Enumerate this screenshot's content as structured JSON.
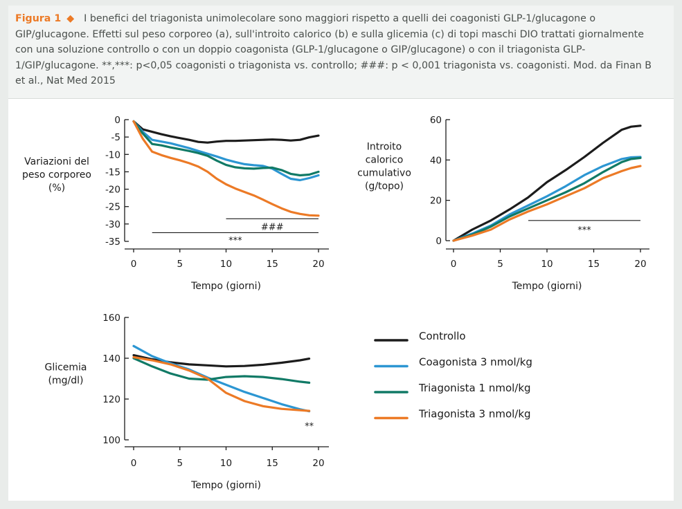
{
  "caption": {
    "label": "Figura 1",
    "diamond": "◆",
    "text": "I benefici del triagonista unimolecolare sono maggiori rispetto a quelli dei coagonisti GLP-1/glucagone o GIP/glucagone. Effetti sul peso corporeo (a), sull'introito calorico (b) e sulla glicemia (c) di topi maschi DIO trattati giornalmente con una soluzione controllo o con un doppio coagonista (GLP-1/glucagone o GIP/glucagone) o con il triagonista GLP-1/GIP/glucagone. **,***: p<0,05 coagonisti o triagonista vs. controllo; ###: p < 0,001 triagonista vs. coagonisti. Mod. da Finan B et al., Nat Med 2015"
  },
  "colors": {
    "Controllo": "#1c1c1c",
    "Coagonista 3 nmol/kg": "#2c96d2",
    "Triagonista 1 nmol/kg": "#117a66",
    "Triagonista 3 nmol/kg": "#ec7a26"
  },
  "legend": [
    "Controllo",
    "Coagonista 3 nmol/kg",
    "Triagonista 1 nmol/kg",
    "Triagonista 3 nmol/kg"
  ],
  "chart_data": [
    {
      "type": "line",
      "panel": "a",
      "xlabel": "Tempo (giorni)",
      "ylabel": "Variazioni del peso corporeo (%)",
      "ylabel_lines": [
        "Variazioni del",
        "peso corporeo",
        "(%)"
      ],
      "xlim": [
        0,
        20
      ],
      "ylim": [
        -35,
        0
      ],
      "xticks": [
        0,
        5,
        10,
        15,
        20
      ],
      "yticks": [
        0,
        -5,
        -10,
        -15,
        -20,
        -25,
        -30,
        -35
      ],
      "series": [
        {
          "name": "Controllo",
          "x": [
            0,
            1,
            2,
            3,
            4,
            5,
            6,
            7,
            8,
            9,
            10,
            11,
            12,
            13,
            14,
            15,
            16,
            17,
            18,
            19,
            20
          ],
          "y": [
            -0.5,
            -2.8,
            -3.5,
            -4.2,
            -4.8,
            -5.3,
            -5.8,
            -6.4,
            -6.6,
            -6.3,
            -6.1,
            -6.1,
            -6.0,
            -5.9,
            -5.8,
            -5.7,
            -5.8,
            -6.0,
            -5.8,
            -5.1,
            -4.6
          ]
        },
        {
          "name": "Coagonista 3 nmol/kg",
          "x": [
            0,
            1,
            2,
            3,
            4,
            5,
            6,
            7,
            8,
            9,
            10,
            11,
            12,
            13,
            14,
            15,
            16,
            17,
            18,
            19,
            20
          ],
          "y": [
            -0.5,
            -3.5,
            -5.8,
            -6.3,
            -6.8,
            -7.5,
            -8.2,
            -9.0,
            -9.8,
            -10.6,
            -11.5,
            -12.2,
            -12.8,
            -13.1,
            -13.3,
            -14.1,
            -15.6,
            -17.0,
            -17.4,
            -16.8,
            -16.0
          ]
        },
        {
          "name": "Triagonista 1 nmol/kg",
          "x": [
            0,
            1,
            2,
            3,
            4,
            5,
            6,
            7,
            8,
            9,
            10,
            11,
            12,
            13,
            14,
            15,
            16,
            17,
            18,
            19,
            20
          ],
          "y": [
            -0.5,
            -4.0,
            -7.0,
            -7.4,
            -8.0,
            -8.5,
            -9.0,
            -9.6,
            -10.4,
            -11.8,
            -13.0,
            -13.7,
            -14.0,
            -14.1,
            -13.9,
            -13.8,
            -14.5,
            -15.6,
            -16.0,
            -15.8,
            -15.0
          ]
        },
        {
          "name": "Triagonista 3 nmol/kg",
          "x": [
            0,
            1,
            2,
            3,
            4,
            5,
            6,
            7,
            8,
            9,
            10,
            11,
            12,
            13,
            14,
            15,
            16,
            17,
            18,
            19,
            20
          ],
          "y": [
            -0.5,
            -5.5,
            -9.2,
            -10.2,
            -11.0,
            -11.7,
            -12.5,
            -13.5,
            -15.0,
            -17.0,
            -18.6,
            -19.8,
            -20.8,
            -21.8,
            -23.0,
            -24.3,
            -25.5,
            -26.5,
            -27.1,
            -27.5,
            -27.6
          ]
        }
      ],
      "annotations": [
        {
          "label": "###",
          "bracket_x": [
            10,
            20
          ],
          "bracket_y": -28.5,
          "label_x": 15,
          "label_y": -30.7
        },
        {
          "label": "***",
          "bracket_x": [
            2,
            20
          ],
          "bracket_y": -32.5,
          "label_x": 11,
          "label_y": -34.6
        }
      ]
    },
    {
      "type": "line",
      "panel": "b",
      "xlabel": "Tempo (giorni)",
      "ylabel": "Introito calorico cumulativo (g/topo)",
      "ylabel_lines": [
        "Introito",
        "calorico",
        "cumulativo",
        "(g/topo)"
      ],
      "xlim": [
        0,
        20
      ],
      "ylim": [
        0,
        60
      ],
      "xticks": [
        0,
        5,
        10,
        15,
        20
      ],
      "yticks": [
        0,
        20,
        40,
        60
      ],
      "series": [
        {
          "name": "Controllo",
          "x": [
            0,
            2,
            4,
            6,
            8,
            10,
            12,
            14,
            16,
            18,
            19,
            20
          ],
          "y": [
            0,
            5.5,
            10,
            15.5,
            21.5,
            29,
            35,
            41.5,
            48.5,
            55,
            56.5,
            57
          ]
        },
        {
          "name": "Coagonista 3 nmol/kg",
          "x": [
            0,
            2,
            4,
            6,
            8,
            10,
            12,
            14,
            16,
            18,
            19,
            20
          ],
          "y": [
            0,
            3.5,
            7.5,
            13,
            17.5,
            22,
            27,
            32.5,
            37,
            40.5,
            41.3,
            41.5
          ]
        },
        {
          "name": "Triagonista 1 nmol/kg",
          "x": [
            0,
            2,
            4,
            6,
            8,
            10,
            12,
            14,
            16,
            18,
            19,
            20
          ],
          "y": [
            0,
            3,
            7,
            12,
            16,
            20,
            24,
            28.5,
            34,
            39,
            40.5,
            41
          ]
        },
        {
          "name": "Triagonista 3 nmol/kg",
          "x": [
            0,
            2,
            4,
            6,
            8,
            10,
            12,
            14,
            16,
            18,
            19,
            20
          ],
          "y": [
            0,
            2.5,
            5.5,
            10.5,
            14.5,
            18,
            22,
            26,
            31,
            34.5,
            36,
            37
          ]
        }
      ],
      "annotations": [
        {
          "label": "***",
          "bracket_x": [
            8,
            20
          ],
          "bracket_y": 10,
          "label_x": 14,
          "label_y": 5.5
        }
      ]
    },
    {
      "type": "line",
      "panel": "c",
      "xlabel": "Tempo (giorni)",
      "ylabel": "Glicemia (mg/dl)",
      "ylabel_lines": [
        "Glicemia",
        "(mg/dl)"
      ],
      "xlim": [
        0,
        20
      ],
      "ylim": [
        100,
        160
      ],
      "xticks": [
        0,
        5,
        10,
        15,
        20
      ],
      "yticks": [
        100,
        120,
        140,
        160
      ],
      "series": [
        {
          "name": "Controllo",
          "x": [
            0,
            2,
            4,
            6,
            8,
            10,
            12,
            14,
            16,
            18,
            19
          ],
          "y": [
            141.5,
            139.5,
            138,
            137,
            136.5,
            136,
            136.2,
            136.8,
            137.8,
            139,
            139.8
          ]
        },
        {
          "name": "Coagonista 3 nmol/kg",
          "x": [
            0,
            2,
            4,
            6,
            8,
            10,
            12,
            14,
            16,
            18,
            19
          ],
          "y": [
            146,
            141,
            137.5,
            134.5,
            130.5,
            127,
            123.5,
            120.5,
            117.5,
            115,
            114
          ]
        },
        {
          "name": "Triagonista 1 nmol/kg",
          "x": [
            0,
            2,
            4,
            6,
            8,
            10,
            12,
            14,
            16,
            18,
            19
          ],
          "y": [
            140,
            136,
            132.5,
            130,
            129.5,
            130.8,
            131.2,
            130.8,
            129.8,
            128.5,
            128
          ]
        },
        {
          "name": "Triagonista 3 nmol/kg",
          "x": [
            0,
            2,
            4,
            6,
            8,
            10,
            12,
            14,
            16,
            18,
            19
          ],
          "y": [
            140.5,
            139,
            137,
            134,
            130,
            123,
            119,
            116.5,
            115.2,
            114.5,
            114.2
          ]
        }
      ],
      "annotations": [
        {
          "label": "**",
          "label_x": 19,
          "label_y": 107
        }
      ]
    }
  ]
}
